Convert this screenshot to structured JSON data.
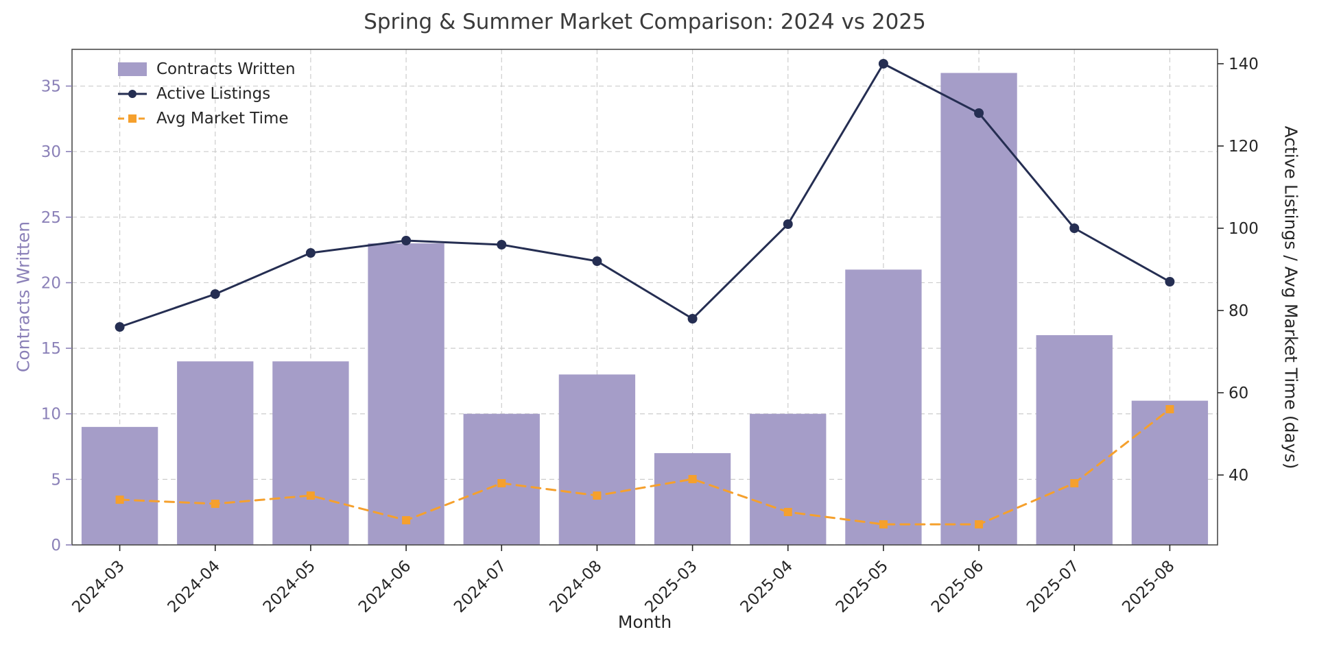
{
  "chart_data": {
    "type": "bar",
    "title": "Spring & Summer Market Comparison: 2024 vs 2025",
    "xlabel": "Month",
    "ylabel_left": "Contracts Written",
    "ylabel_right": "Active Listings / Avg Market Time (days)",
    "categories": [
      "2024-03",
      "2024-04",
      "2024-05",
      "2024-06",
      "2024-07",
      "2024-08",
      "2025-03",
      "2025-04",
      "2025-05",
      "2025-06",
      "2025-07",
      "2025-08"
    ],
    "series": [
      {
        "name": "Contracts Written",
        "kind": "bar",
        "axis": "left",
        "color": "#a59dc8",
        "values": [
          9,
          14,
          14,
          23,
          10,
          13,
          7,
          10,
          21,
          36,
          16,
          11
        ]
      },
      {
        "name": "Active Listings",
        "kind": "line",
        "axis": "right",
        "color": "#252e52",
        "marker": "circle",
        "linestyle": "solid",
        "values": [
          76,
          84,
          94,
          97,
          96,
          92,
          78,
          101,
          140,
          128,
          100,
          87
        ]
      },
      {
        "name": "Avg Market Time",
        "kind": "line",
        "axis": "right",
        "color": "#f5a02d",
        "marker": "square",
        "linestyle": "dashed",
        "values": [
          34,
          33,
          35,
          29,
          38,
          35,
          39,
          31,
          28,
          28,
          38,
          56
        ]
      }
    ],
    "left_ticks": [
      0,
      5,
      10,
      15,
      20,
      25,
      30,
      35
    ],
    "right_ticks": [
      40,
      60,
      80,
      100,
      120,
      140
    ],
    "left_ylim": [
      0,
      37.8
    ],
    "right_ylim": [
      23,
      143.5
    ],
    "grid": "dashed",
    "legend_position": "upper-left"
  },
  "colors": {
    "left_axis_text": "#8b81b8",
    "axis_text": "#262626",
    "grid": "#cccccc",
    "spine": "#4a4a4a",
    "title_text": "#3a3a3a",
    "background": "#ffffff"
  }
}
